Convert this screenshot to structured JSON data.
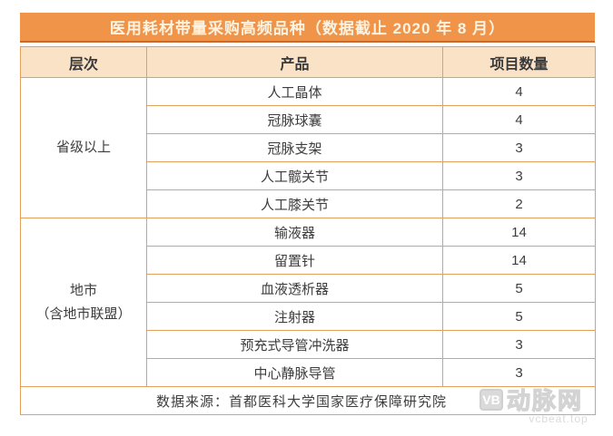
{
  "title": "医用耗材带量采购高频品种（数据截止 2020 年 8 月）",
  "columns": {
    "level": "层次",
    "product": "产品",
    "count": "项目数量"
  },
  "chart_data": {
    "type": "table",
    "title": "医用耗材带量采购高频品种（数据截止 2020 年 8 月）",
    "columns": [
      "层次",
      "产品",
      "项目数量"
    ],
    "groups": [
      {
        "level_lines": [
          "省级以上"
        ],
        "rows": [
          {
            "product": "人工晶体",
            "count": "4"
          },
          {
            "product": "冠脉球囊",
            "count": "4"
          },
          {
            "product": "冠脉支架",
            "count": "3"
          },
          {
            "product": "人工髋关节",
            "count": "3"
          },
          {
            "product": "人工膝关节",
            "count": "2"
          }
        ]
      },
      {
        "level_lines": [
          "地市",
          "（含地市联盟）"
        ],
        "rows": [
          {
            "product": "输液器",
            "count": "14"
          },
          {
            "product": "留置针",
            "count": "14"
          },
          {
            "product": "血液透析器",
            "count": "5"
          },
          {
            "product": "注射器",
            "count": "5"
          },
          {
            "product": "预充式导管冲洗器",
            "count": "3"
          },
          {
            "product": "中心静脉导管",
            "count": "3"
          }
        ]
      }
    ],
    "footer": "数据来源：首都医科大学国家医疗保障研究院"
  },
  "footer_source": "数据来源：首都医科大学国家医疗保障研究院",
  "watermark": {
    "logo": "VB",
    "name": "动脉网",
    "domain": "vcbeat.top"
  },
  "colors": {
    "title_bg": "#f0944a",
    "title_underline": "#c96a35",
    "title_text": "#fdf3e0",
    "header_bg": "#fae2c6",
    "border": "#e2a05c",
    "body_text": "#3d3d3d",
    "watermark_gray": "#b0b0b0"
  }
}
